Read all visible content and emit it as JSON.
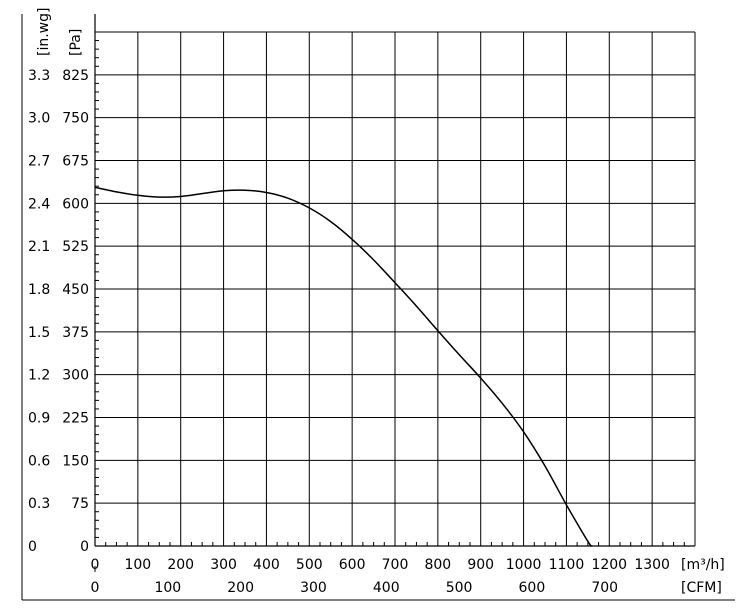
{
  "chart_data": {
    "type": "line",
    "units": {
      "y_primary": "[Pa]",
      "y_secondary": "[in.wg]",
      "x_primary": "[m³/h]",
      "x_secondary": "[CFM]"
    },
    "y_ticks_pa": [
      "0",
      "75",
      "150",
      "225",
      "300",
      "375",
      "450",
      "525",
      "600",
      "675",
      "750",
      "825"
    ],
    "y_ticks_inwg": [
      "0",
      "0.3",
      "0.6",
      "0.9",
      "1.2",
      "1.5",
      "1.8",
      "2.1",
      "2.4",
      "2.7",
      "3.0",
      "3.3"
    ],
    "x_ticks_m3h": [
      "0",
      "100",
      "200",
      "300",
      "400",
      "500",
      "600",
      "700",
      "800",
      "900",
      "1000",
      "1100",
      "1200",
      "1300"
    ],
    "x_ticks_cfm": [
      "0",
      "100",
      "200",
      "300",
      "400",
      "500",
      "600",
      "700"
    ],
    "x_range_m3h": [
      0,
      1400
    ],
    "y_range_pa": [
      0,
      900
    ],
    "grid": true,
    "series": [
      {
        "x": [
          0,
          50,
          100,
          150,
          200,
          250,
          300,
          350,
          400,
          450,
          500,
          550,
          600,
          650,
          700,
          750,
          800,
          850,
          900,
          950,
          1000,
          1050,
          1100,
          1150,
          1160
        ],
        "y": [
          628,
          620,
          614,
          611,
          612,
          617,
          622,
          623,
          619,
          609,
          592,
          568,
          537,
          501,
          461,
          420,
          377,
          335,
          294,
          250,
          200,
          140,
          72,
          8,
          0
        ]
      }
    ]
  }
}
